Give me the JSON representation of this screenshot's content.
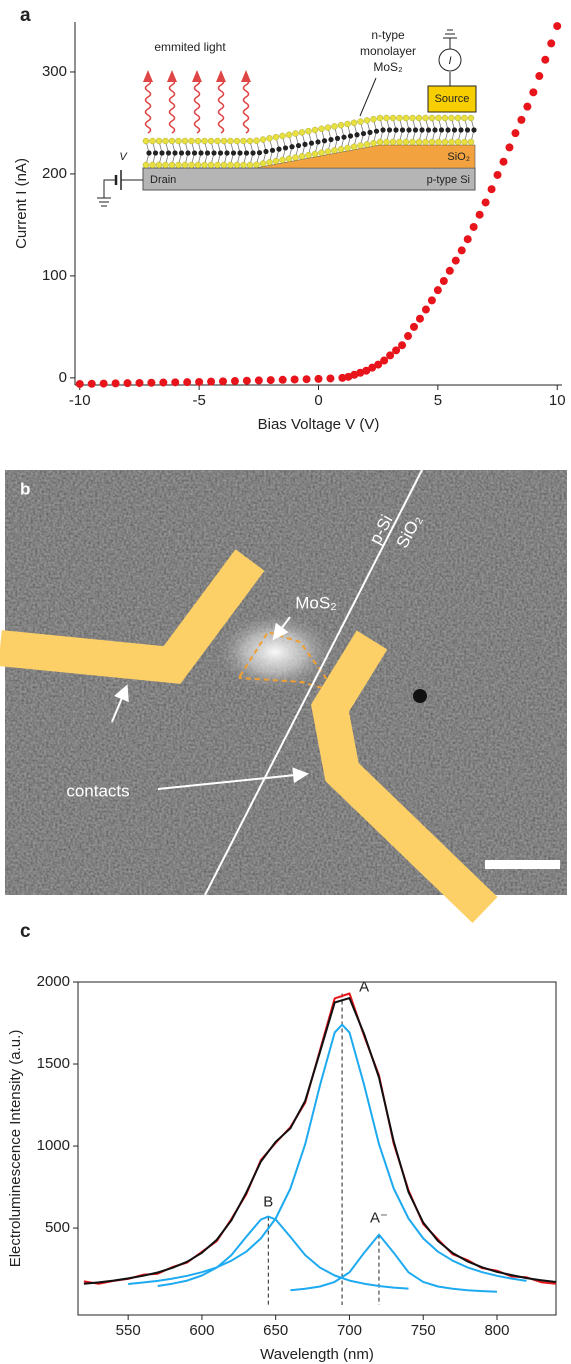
{
  "chart_data": [
    {
      "type": "scatter",
      "panel_label": "a",
      "x_label": "Bias Voltage V (V)",
      "y_label": "Current I (nA)",
      "xlim": [
        -10.2,
        10.2
      ],
      "ylim": [
        -7,
        349
      ],
      "xticks": [
        -10,
        -5,
        0,
        5,
        10
      ],
      "yticks": [
        0,
        100,
        200,
        300
      ],
      "series": [
        {
          "color": "#e8141b",
          "x": [
            -10,
            -9.5,
            -9,
            -8.5,
            -8,
            -7.5,
            -7,
            -6.5,
            -6,
            -5.5,
            -5,
            -4.5,
            -4,
            -3.5,
            -3,
            -2.5,
            -2,
            -1.5,
            -1,
            -0.5,
            0,
            0.5,
            1,
            1.25,
            1.5,
            1.75,
            2,
            2.25,
            2.5,
            2.75,
            3,
            3.25,
            3.5,
            3.75,
            4,
            4.25,
            4.5,
            4.75,
            5,
            5.25,
            5.5,
            5.75,
            6,
            6.25,
            6.5,
            6.75,
            7,
            7.25,
            7.5,
            7.75,
            8,
            8.25,
            8.5,
            8.75,
            9,
            9.25,
            9.5,
            9.75,
            10
          ],
          "values": [
            -6,
            -5.8,
            -5.6,
            -5.4,
            -5.2,
            -5,
            -4.8,
            -4.6,
            -4.4,
            -4.2,
            -4,
            -3.7,
            -3.4,
            -3.1,
            -2.8,
            -2.5,
            -2.2,
            -1.9,
            -1.6,
            -1.3,
            -1,
            -0.6,
            0,
            1,
            3,
            5,
            7,
            10,
            13,
            17,
            22,
            27,
            32,
            41,
            50,
            58,
            67,
            76,
            86,
            95,
            105,
            115,
            125,
            136,
            148,
            160,
            172,
            185,
            199,
            212,
            226,
            240,
            253,
            266,
            280,
            296,
            312,
            328,
            345
          ]
        }
      ],
      "inset": {
        "emitted_light": "emmited light",
        "mos2": [
          "n-type",
          "monolayer",
          "MoS₂"
        ],
        "source": "Source",
        "sio2": "SiO₂",
        "drain": "Drain",
        "substrate": "p-type Si",
        "voltage": "V",
        "current": "I"
      }
    },
    {
      "type": "line",
      "panel_label": "c",
      "x_label": "Wavelength (nm)",
      "y_label": "Electroluminescence Intensity (a.u.)",
      "xlim": [
        516,
        840
      ],
      "ylim": [
        -30,
        2000
      ],
      "xticks": [
        550,
        600,
        650,
        700,
        750,
        800
      ],
      "yticks": [
        500,
        1000,
        1500,
        2000
      ],
      "series": [
        {
          "color": "#e8141b",
          "x": [
            520,
            530,
            540,
            550,
            560,
            570,
            580,
            590,
            600,
            610,
            620,
            630,
            640,
            650,
            660,
            670,
            680,
            690,
            700,
            710,
            720,
            730,
            740,
            750,
            760,
            770,
            780,
            790,
            800,
            810,
            820,
            830,
            840
          ],
          "values": [
            175,
            160,
            178,
            190,
            215,
            222,
            262,
            290,
            355,
            420,
            555,
            705,
            915,
            1020,
            1115,
            1265,
            1585,
            1900,
            1930,
            1670,
            1430,
            1015,
            730,
            525,
            430,
            340,
            305,
            255,
            240,
            205,
            200,
            170,
            160
          ]
        },
        {
          "color": "#111111",
          "x": [
            520,
            530,
            540,
            550,
            560,
            570,
            580,
            590,
            600,
            610,
            620,
            630,
            640,
            650,
            660,
            670,
            680,
            690,
            700,
            710,
            720,
            730,
            740,
            750,
            760,
            770,
            780,
            790,
            800,
            810,
            820,
            830,
            840
          ],
          "values": [
            160,
            169,
            180,
            193,
            209,
            229,
            258,
            295,
            349,
            428,
            547,
            715,
            906,
            1026,
            1108,
            1276,
            1574,
            1875,
            1902,
            1682,
            1418,
            1028,
            719,
            534,
            421,
            348,
            297,
            261,
            233,
            213,
            195,
            182,
            171
          ]
        },
        {
          "color": "#1eaaf0",
          "x": [
            550,
            560,
            570,
            580,
            590,
            600,
            610,
            620,
            630,
            640,
            650,
            660,
            670,
            680,
            690,
            695,
            700,
            710,
            720,
            730,
            740,
            750,
            760,
            770,
            780,
            790,
            800,
            810,
            820
          ],
          "values": [
            159,
            168,
            178,
            192,
            209,
            231,
            260,
            301,
            356,
            437,
            558,
            741,
            1011,
            1371,
            1692,
            1740,
            1692,
            1371,
            1011,
            741,
            558,
            437,
            356,
            301,
            260,
            231,
            209,
            192,
            178
          ]
        },
        {
          "color": "#1eaaf0",
          "x": [
            570,
            580,
            590,
            600,
            610,
            620,
            630,
            640,
            645,
            650,
            660,
            670,
            680,
            690,
            700,
            710,
            720,
            730,
            740
          ],
          "values": [
            147,
            161,
            180,
            211,
            259,
            335,
            446,
            552,
            570,
            552,
            446,
            335,
            259,
            211,
            180,
            161,
            147,
            137,
            131
          ]
        },
        {
          "color": "#1eaaf0",
          "x": [
            660,
            670,
            680,
            690,
            700,
            710,
            720,
            730,
            740,
            750,
            760,
            770,
            780,
            790,
            800
          ],
          "values": [
            121,
            130,
            144,
            172,
            230,
            350,
            460,
            350,
            230,
            172,
            144,
            130,
            121,
            116,
            112
          ]
        }
      ],
      "peaks": [
        {
          "label": "A",
          "x": 695,
          "y": 1930
        },
        {
          "label": "B",
          "x": 645,
          "y": 570
        },
        {
          "label": "A⁻",
          "x": 720,
          "y": 460
        }
      ]
    }
  ],
  "micrograph": {
    "panel_label": "b",
    "p_si": "p-Si",
    "sio2": "SiO₂",
    "mos2": "MoS₂",
    "contacts": "contacts"
  }
}
